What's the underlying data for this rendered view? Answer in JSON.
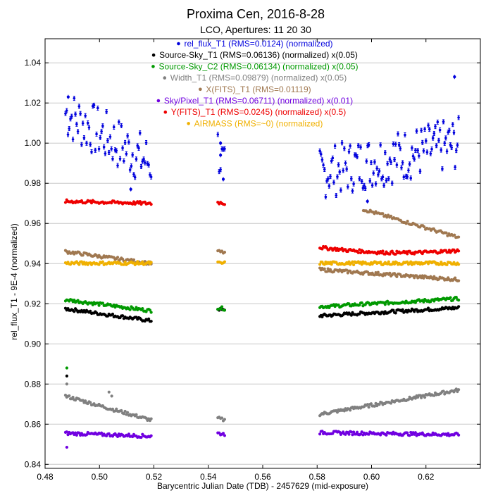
{
  "chart_data": {
    "type": "scatter",
    "title": "Proxima Cen, 2016-8-28",
    "subtitle": "LCO, Apertures: 11 20 30",
    "xlabel": "Barycentric Julian Date (TDB) - 2457629 (mid-exposure)",
    "ylabel": "rel_flux_T1 - 9E-4 (normalized)",
    "xlim": [
      0.48,
      0.64
    ],
    "ylim": [
      0.838,
      1.052
    ],
    "x_ticks": [
      "0.48",
      "0.50",
      "0.52",
      "0.54",
      "0.56",
      "0.58",
      "0.60",
      "0.62"
    ],
    "x_tick_values": [
      0.48,
      0.5,
      0.52,
      0.54,
      0.56,
      0.58,
      0.6,
      0.62
    ],
    "y_ticks": [
      "0.84",
      "0.86",
      "0.88",
      "0.90",
      "0.92",
      "0.94",
      "0.96",
      "0.98",
      "1.00",
      "1.02",
      "1.04"
    ],
    "y_tick_values": [
      0.84,
      0.86,
      0.88,
      0.9,
      0.92,
      0.94,
      0.96,
      0.98,
      1.0,
      1.02,
      1.04
    ],
    "grid": "horizontal",
    "legend_placement": "top-center",
    "segments": [
      {
        "x": [
          0.4875,
          0.519
        ],
        "n": 70
      },
      {
        "x": [
          0.5435,
          0.546
        ],
        "n": 6
      },
      {
        "x": [
          0.581,
          0.632
        ],
        "n": 120
      }
    ],
    "series": [
      {
        "name": "rel_flux_T1 (RMS=0.0124) (normalized)",
        "color": "#0000dd",
        "marker": "errorbar",
        "style": "scatter",
        "center": 1.0,
        "scatter": 0.013,
        "segments_y": [
          [
            1.015,
            0.99
          ],
          [
            0.998,
            0.985
          ],
          [
            0.985,
            1.0
          ]
        ],
        "extra_points": [
          [
            0.4885,
            1.023
          ],
          [
            0.5445,
            1.0
          ],
          [
            0.5445,
            0.994
          ],
          [
            0.5455,
            0.982
          ],
          [
            0.6305,
            1.033
          ],
          [
            0.5115,
            0.977
          ],
          [
            0.5985,
            0.971
          ]
        ]
      },
      {
        "name": "Source-Sky_T1 (RMS=0.06136) (normalized) x(0.05)",
        "color": "#000000",
        "marker": "dot",
        "style": "band",
        "segments_y": [
          [
            0.9175,
            0.9115
          ],
          [
            0.9175,
            0.9165
          ],
          [
            0.914,
            0.918
          ]
        ],
        "extra_points": [
          [
            0.488,
            0.884
          ]
        ]
      },
      {
        "name": "Source-Sky_C2 (RMS=0.06134) (normalized) x(0.05)",
        "color": "#009900",
        "marker": "dot",
        "style": "band",
        "segments_y": [
          [
            0.922,
            0.9165
          ],
          [
            0.918,
            0.9175
          ],
          [
            0.9185,
            0.9225
          ]
        ],
        "extra_points": [
          [
            0.488,
            0.888
          ]
        ]
      },
      {
        "name": "Width_T1 (RMS=0.09879) (normalized) x(0.05)",
        "color": "#808080",
        "marker": "dot",
        "style": "band",
        "segments_y": [
          [
            0.874,
            0.862
          ],
          [
            0.863,
            0.862
          ],
          [
            0.865,
            0.877
          ]
        ],
        "extra_points": [
          [
            0.488,
            0.88
          ],
          [
            0.5035,
            0.876
          ],
          [
            0.5045,
            0.874
          ]
        ]
      },
      {
        "name": "X(FITS)_T1 (RMS=0.01119)",
        "color": "#a07850",
        "marker": "dot",
        "style": "band",
        "segments_y": [
          [
            0.946,
            0.94
          ],
          [
            0.946,
            0.9455
          ],
          [
            0.937,
            0.932
          ]
        ],
        "extra_points": [],
        "second_segment": {
          "x": [
            0.597,
            0.632
          ],
          "y": [
            0.967,
            0.953
          ],
          "n": 70
        }
      },
      {
        "name": "Sky/Pixel_T1 (RMS=0.06711) (normalized) x(0.01)",
        "color": "#7000e0",
        "marker": "dot",
        "style": "band",
        "segments_y": [
          [
            0.8555,
            0.854
          ],
          [
            0.8555,
            0.855
          ],
          [
            0.8558,
            0.8548
          ]
        ],
        "extra_points": [
          [
            0.488,
            0.8485
          ]
        ]
      },
      {
        "name": "Y(FITS)_T1 (RMS=0.0245) (normalized) x(0.5)",
        "color": "#ee0000",
        "marker": "dot",
        "style": "band",
        "segments_y": [
          [
            0.971,
            0.97
          ],
          [
            0.9705,
            0.97
          ],
          [
            0.948,
            0.9465
          ]
        ],
        "extra_points": [],
        "dip": true
      },
      {
        "name": "AIRMASS (RMS=~0) (normalized)",
        "color": "#f0b000",
        "marker": "dot",
        "style": "band",
        "segments_y": [
          [
            0.9402,
            0.9402
          ],
          [
            0.9402,
            0.9402
          ],
          [
            0.9402,
            0.9402
          ]
        ],
        "extra_points": []
      }
    ]
  }
}
